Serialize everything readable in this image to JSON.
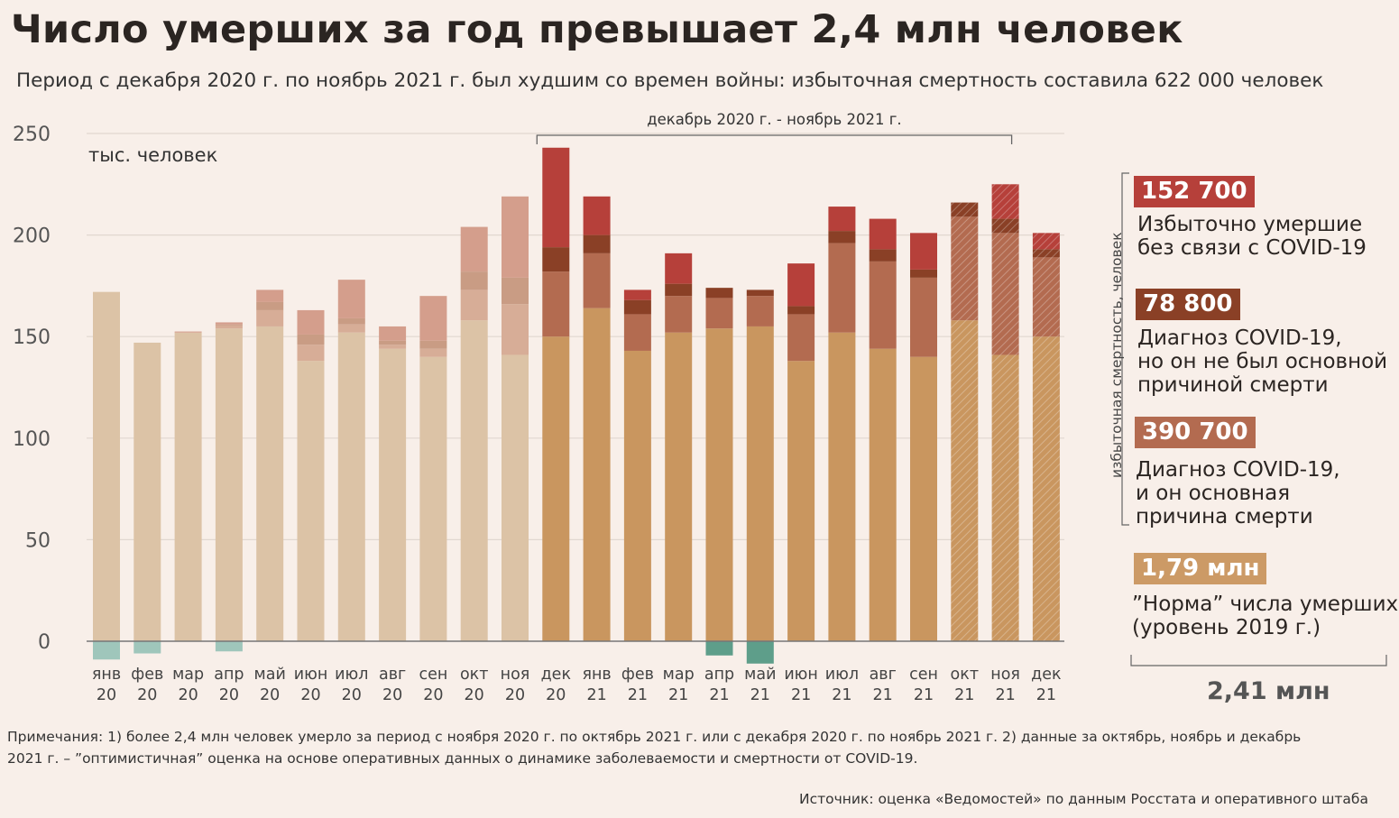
{
  "title": "Число умерших за год превышает 2,4 млн человек",
  "subtitle": "Период с декабря 2020 г. по ноябрь 2021 г. был худшим со времен войны: избыточная смертность составила 622 000 человек",
  "chart_data": {
    "type": "bar",
    "stacked": true,
    "unit_label": "тыс. человек",
    "ylim": [
      -12,
      250
    ],
    "yticks": [
      0,
      50,
      100,
      150,
      200,
      250
    ],
    "grid": true,
    "categories": [
      {
        "month": "янв",
        "year": "20"
      },
      {
        "month": "фев",
        "year": "20"
      },
      {
        "month": "мар",
        "year": "20"
      },
      {
        "month": "апр",
        "year": "20"
      },
      {
        "month": "май",
        "year": "20"
      },
      {
        "month": "июн",
        "year": "20"
      },
      {
        "month": "июл",
        "year": "20"
      },
      {
        "month": "авг",
        "year": "20"
      },
      {
        "month": "сен",
        "year": "20"
      },
      {
        "month": "окт",
        "year": "20"
      },
      {
        "month": "ноя",
        "year": "20"
      },
      {
        "month": "дек",
        "year": "20"
      },
      {
        "month": "янв",
        "year": "21"
      },
      {
        "month": "фев",
        "year": "21"
      },
      {
        "month": "мар",
        "year": "21"
      },
      {
        "month": "апр",
        "year": "21"
      },
      {
        "month": "май",
        "year": "21"
      },
      {
        "month": "июн",
        "year": "21"
      },
      {
        "month": "июл",
        "year": "21"
      },
      {
        "month": "авг",
        "year": "21"
      },
      {
        "month": "сен",
        "year": "21"
      },
      {
        "month": "окт",
        "year": "21"
      },
      {
        "month": "ноя",
        "year": "21"
      },
      {
        "month": "дек",
        "year": "21"
      }
    ],
    "series": [
      {
        "key": "norm",
        "values": [
          172,
          147,
          152,
          154,
          155,
          138,
          152,
          144,
          140,
          158,
          141,
          150,
          164,
          143,
          152,
          154,
          155,
          138,
          152,
          144,
          140,
          158,
          141,
          150
        ]
      },
      {
        "key": "covid_main",
        "values": [
          0,
          0,
          0,
          1.5,
          8,
          8,
          4,
          2,
          4,
          15,
          25,
          32,
          27,
          18,
          18,
          15,
          15,
          23,
          44,
          43,
          39,
          51,
          60,
          39
        ]
      },
      {
        "key": "covid_not_main",
        "values": [
          0,
          0,
          0,
          0.5,
          4,
          5,
          3,
          2,
          4,
          9,
          13,
          12,
          9,
          7,
          6,
          5,
          3,
          4,
          6,
          6,
          4,
          7,
          7,
          4
        ]
      },
      {
        "key": "excess_other",
        "values": [
          0,
          0,
          0.5,
          1,
          6,
          12,
          19,
          7,
          22,
          22,
          40,
          49,
          19,
          5,
          15,
          0,
          0,
          21,
          12,
          15,
          18,
          0,
          17,
          8
        ]
      },
      {
        "key": "deficit",
        "values": [
          -9,
          -6,
          0,
          -5,
          0,
          0,
          0,
          0,
          0,
          0,
          0,
          0,
          0,
          0,
          0,
          -7,
          -11,
          0,
          0,
          0,
          0,
          0,
          0,
          0
        ]
      }
    ],
    "period_bracket": {
      "label": "декабрь 2020 г. - ноябрь 2021 г.",
      "from_index": 11,
      "to_index": 22
    },
    "legend": [
      {
        "key": "excess_other",
        "value": "152 700",
        "text": [
          "Избыточно умершие",
          "без связи с COVID-19"
        ],
        "color": "#b6403a"
      },
      {
        "key": "covid_not_main",
        "value": "78 800",
        "text": [
          "Диагноз  COVID-19,",
          "но он не был основной",
          "причиной смерти"
        ],
        "color": "#8a4026"
      },
      {
        "key": "covid_main",
        "value": "390 700",
        "text": [
          "Диагноз  COVID-19,",
          "и он основная",
          "причина смерти"
        ],
        "color": "#b36b50"
      },
      {
        "key": "norm",
        "value": "1,79 млн",
        "text": [
          "”Норма” числа умерших",
          "(уровень 2019 г.)"
        ],
        "color": "#cc9a66"
      }
    ],
    "legend_side_label": "избыточная смертность, человек",
    "legend_total": "2,41 млн",
    "colors": {
      "pre": {
        "norm": "#dcc3a6",
        "covid_main": "#d7ad97",
        "covid_not_main": "#c99c84",
        "excess_other": "#d49e8c",
        "deficit": "#9fc6bb"
      },
      "post": {
        "norm": "#c9965f",
        "covid_main": "#b36b50",
        "covid_not_main": "#8a4026",
        "excess_other": "#b6403a",
        "deficit": "#5e9e8a"
      },
      "estimate_indices": [
        21,
        22,
        23
      ]
    }
  },
  "notes": [
    "Примечания: 1) более 2,4 млн человек умерло за период с ноября 2020 г. по октябрь 2021 г. или с декабря 2020 г. по ноябрь 2021 г. 2) данные за октябрь, ноябрь и декабрь",
    "2021 г. – ”оптимистичная” оценка на основе оперативных данных о динамике заболеваемости и смертности от COVID-19."
  ],
  "source": "Источник: оценка «Ведомостей» по данным Росстата и оперативного штаба"
}
